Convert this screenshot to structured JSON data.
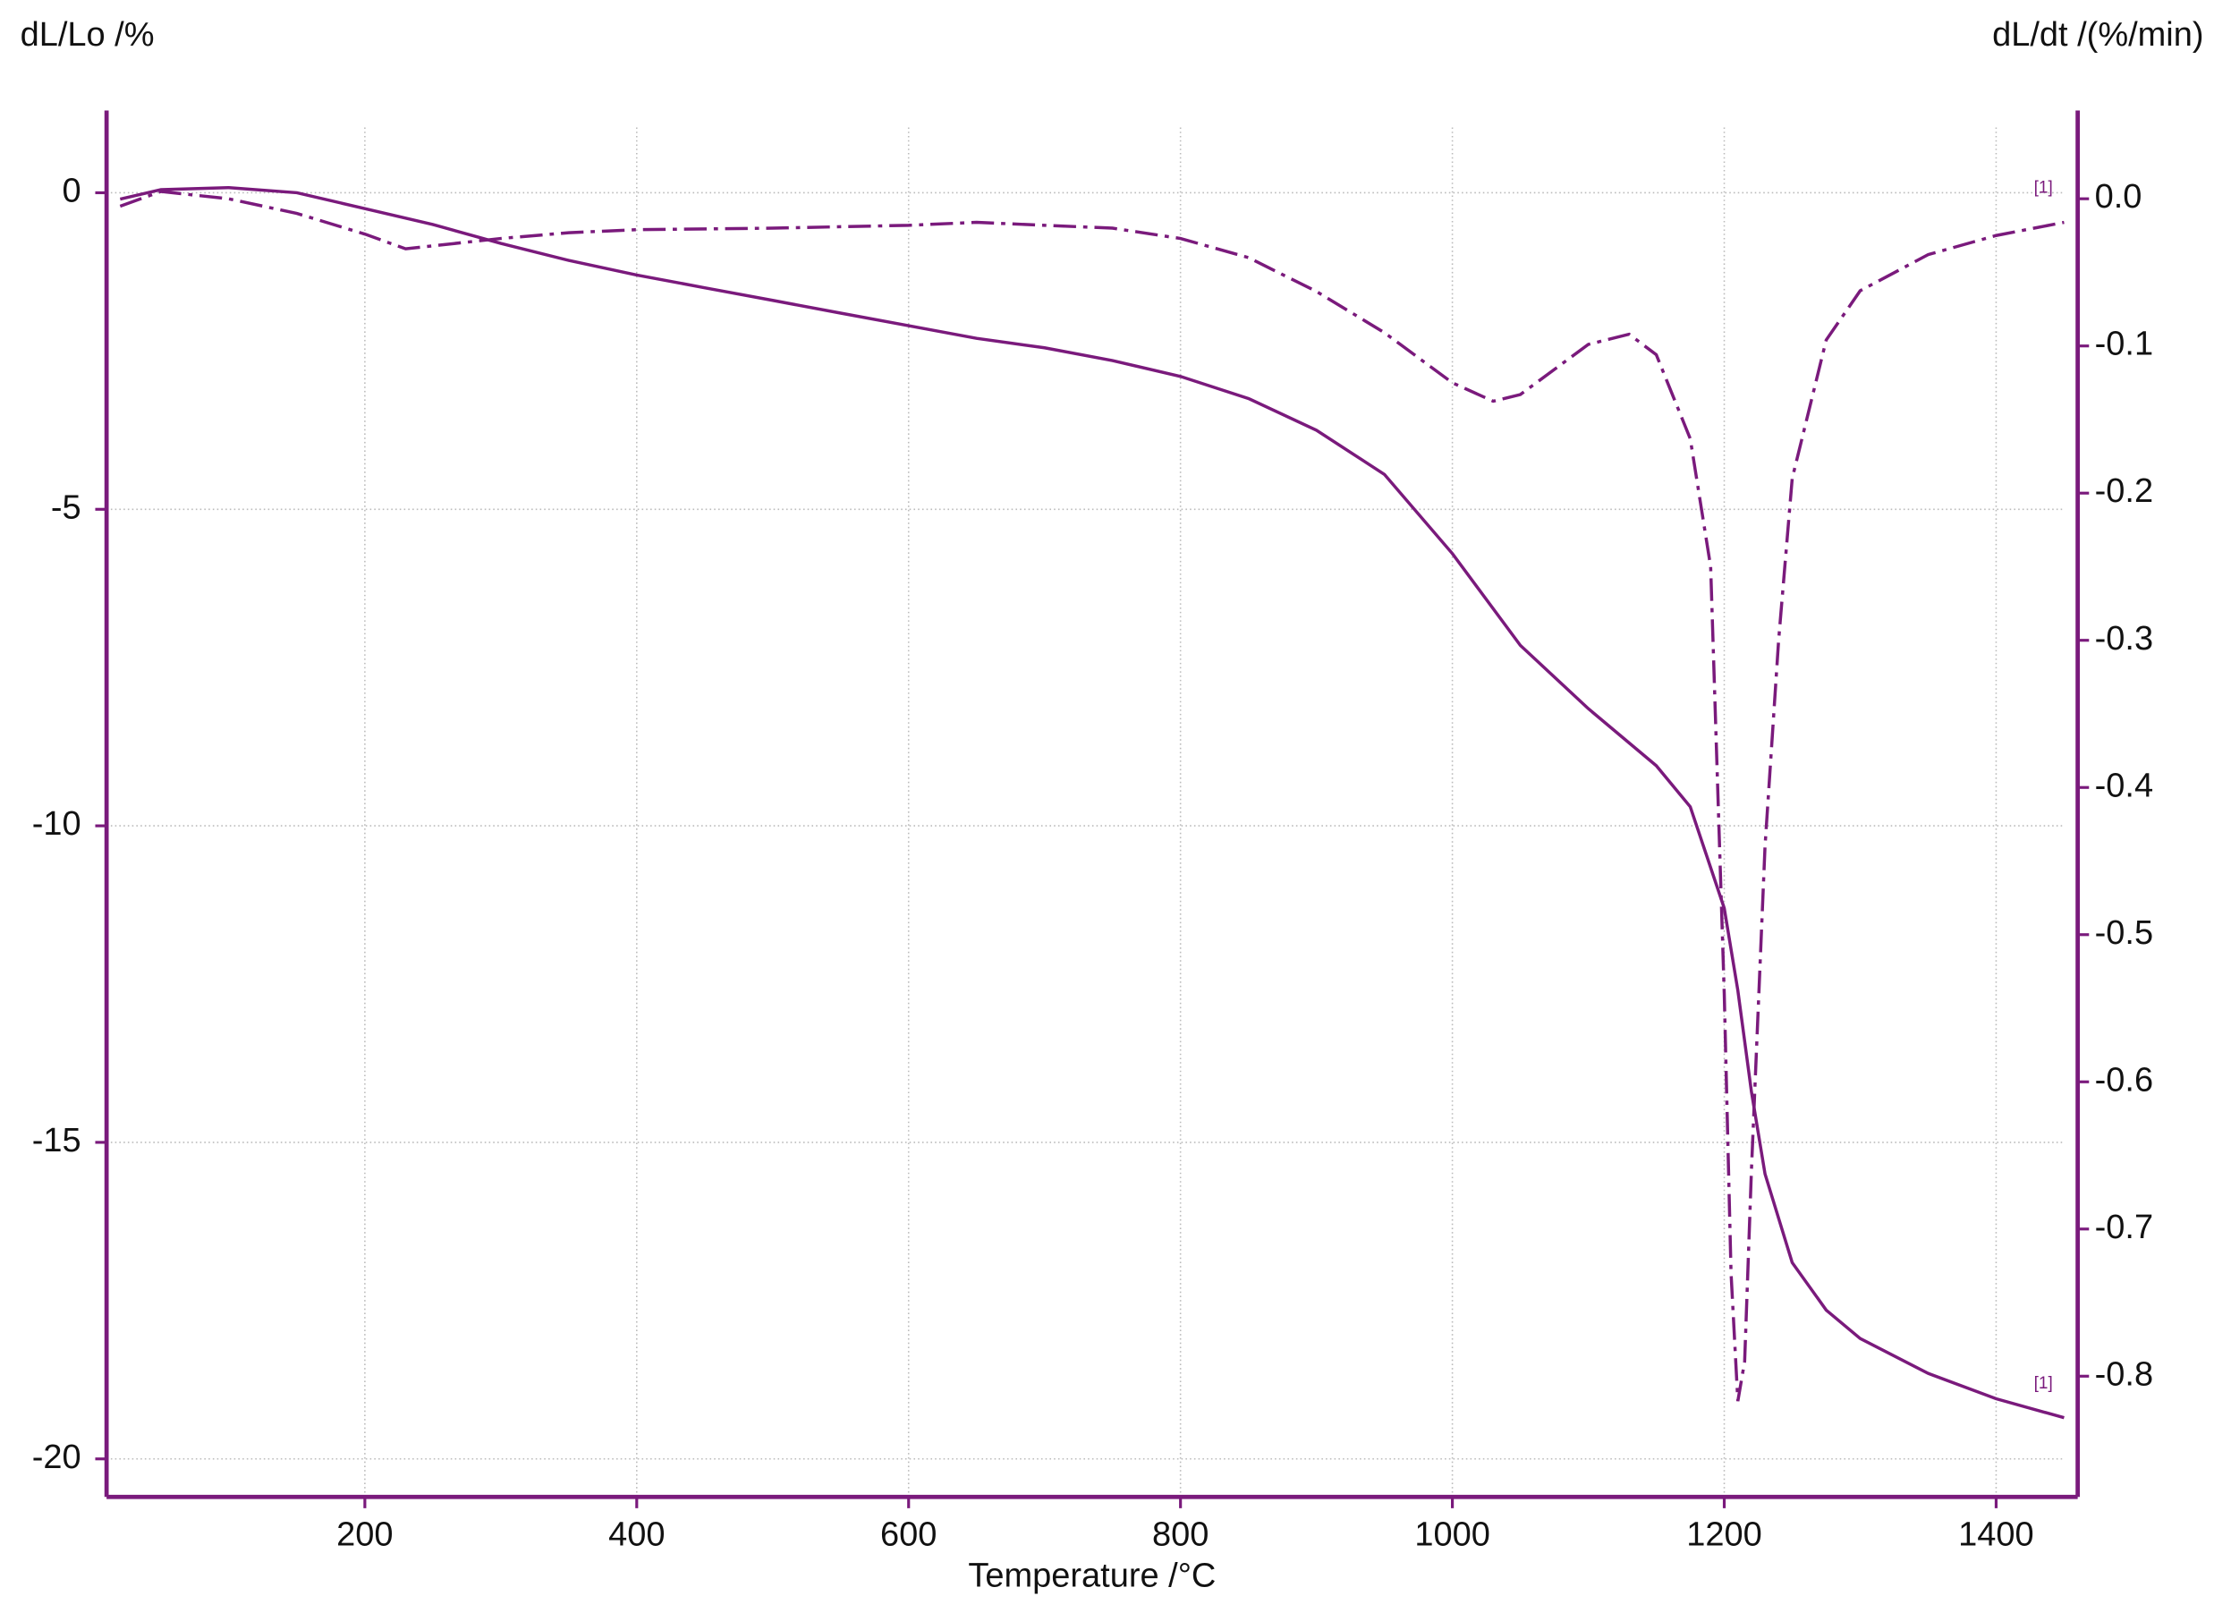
{
  "chart_data": {
    "type": "line",
    "y_label": "dL/Lo /%",
    "y2_label": "dL/dt /(%/min)",
    "x_label": "Temperature /°C",
    "color": "#7a1a7c",
    "grid": true,
    "xlim": [
      10,
      1460
    ],
    "xticks": [
      200,
      400,
      600,
      800,
      1000,
      1200,
      1400
    ],
    "ylim": [
      -20.6,
      1.3
    ],
    "yticks": [
      -20,
      -15,
      -10,
      -5,
      0
    ],
    "y2lim": [
      -0.882,
      0.06
    ],
    "y2ticks": [
      {
        "value": 0,
        "label": "0.0"
      },
      -0.1,
      -0.2,
      -0.3,
      -0.4,
      -0.5,
      -0.6,
      -0.7,
      -0.8
    ],
    "series": [
      {
        "style": "solid",
        "end_label": "[1]",
        "x": [
          20,
          50,
          100,
          150,
          200,
          250,
          300,
          350,
          400,
          450,
          500,
          550,
          600,
          650,
          700,
          750,
          800,
          850,
          900,
          950,
          1000,
          1050,
          1100,
          1150,
          1175,
          1200,
          1210,
          1220,
          1230,
          1250,
          1275,
          1300,
          1350,
          1400,
          1450
        ],
        "values": [
          -0.1,
          0.05,
          0.08,
          0,
          -0.25,
          -0.5,
          -0.8,
          -1.07,
          -1.3,
          -1.5,
          -1.7,
          -1.9,
          -2.1,
          -2.3,
          -2.45,
          -2.65,
          -2.9,
          -3.25,
          -3.75,
          -4.45,
          -5.7,
          -7.15,
          -8.15,
          -9.05,
          -9.7,
          -11.3,
          -12.6,
          -14.2,
          -15.5,
          -16.9,
          -17.65,
          -18.1,
          -18.65,
          -19.05,
          -19.35
        ]
      },
      {
        "style": "dashdot",
        "axis": "y2",
        "end_label": "[1]",
        "x": [
          20,
          50,
          100,
          150,
          200,
          230,
          250,
          300,
          350,
          400,
          500,
          600,
          650,
          700,
          750,
          800,
          850,
          900,
          950,
          1000,
          1030,
          1050,
          1100,
          1130,
          1150,
          1175,
          1190,
          1200,
          1205,
          1210,
          1215,
          1220,
          1230,
          1240,
          1250,
          1275,
          1300,
          1350,
          1400,
          1450
        ],
        "values": [
          -0.005,
          0.005,
          0,
          -0.01,
          -0.024,
          -0.034,
          -0.032,
          -0.027,
          -0.023,
          -0.021,
          -0.02,
          -0.018,
          -0.016,
          -0.018,
          -0.02,
          -0.027,
          -0.04,
          -0.063,
          -0.091,
          -0.125,
          -0.1375,
          -0.133,
          -0.099,
          -0.092,
          -0.106,
          -0.163,
          -0.25,
          -0.54,
          -0.73,
          -0.817,
          -0.79,
          -0.66,
          -0.44,
          -0.3,
          -0.19,
          -0.096,
          -0.0625,
          -0.038,
          -0.025,
          -0.016
        ]
      }
    ]
  }
}
